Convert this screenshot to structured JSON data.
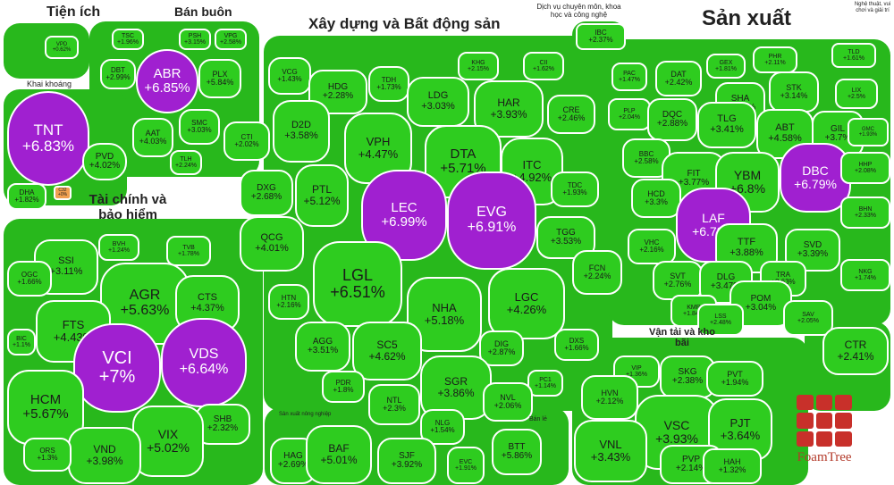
{
  "colors": {
    "green": "#2ecc1f",
    "dark_green": "#28b81c",
    "purple": "#a020d0",
    "red": "#d02020",
    "orange": "#f0a050",
    "gray": "#c8c8c8"
  },
  "sectors": [
    {
      "id": "tien-ich",
      "label": "Tiện ích"
    },
    {
      "id": "ban-buon",
      "label": "Bán buôn"
    },
    {
      "id": "xay-dung",
      "label": "Xây dựng và Bất động sản"
    },
    {
      "id": "dich-vu",
      "label": "Dịch vụ chuyên môn, khoa học và công nghệ"
    },
    {
      "id": "san-xuat",
      "label": "Sản xuất"
    },
    {
      "id": "khai-khoang",
      "label": "Khai khoáng"
    },
    {
      "id": "tai-chinh",
      "label": "Tài chính và bảo hiểm"
    },
    {
      "id": "van-tai",
      "label": "Vận tải và kho bãi"
    },
    {
      "id": "nghe-thuat",
      "label": "Nghệ thuật, vui chơi và giải trí"
    },
    {
      "id": "san-xuat-nong-nghiep",
      "label": "Sản xuất nông nghiệp"
    },
    {
      "id": "ban-le",
      "label": "Bán lẻ"
    }
  ],
  "stocks": [
    {
      "code": "TNT",
      "change": "+6.83%",
      "color": "purple"
    },
    {
      "code": "PVD",
      "change": "+4.02%",
      "color": "green"
    },
    {
      "code": "DHA",
      "change": "+1.82%",
      "color": "green"
    },
    {
      "code": "C32",
      "change": "+0%",
      "color": "orange"
    },
    {
      "code": "ABR",
      "change": "+6.85%",
      "color": "purple"
    },
    {
      "code": "TSC",
      "change": "+1.96%",
      "color": "green"
    },
    {
      "code": "PSH",
      "change": "+3.15%",
      "color": "green"
    },
    {
      "code": "VPG",
      "change": "+2.58%",
      "color": "green"
    },
    {
      "code": "DBT",
      "change": "+2.99%",
      "color": "green"
    },
    {
      "code": "PLX",
      "change": "+5.84%",
      "color": "green"
    },
    {
      "code": "AAT",
      "change": "+4.03%",
      "color": "green"
    },
    {
      "code": "SMC",
      "change": "+3.03%",
      "color": "green"
    },
    {
      "code": "TLH",
      "change": "+2.24%",
      "color": "green"
    },
    {
      "code": "VPD",
      "change": "+0.62%",
      "color": "green"
    },
    {
      "code": "VCG",
      "change": "+1.43%",
      "color": "green"
    },
    {
      "code": "HDG",
      "change": "+2.28%",
      "color": "green"
    },
    {
      "code": "TDH",
      "change": "+1.73%",
      "color": "green"
    },
    {
      "code": "LDG",
      "change": "+3.03%",
      "color": "green"
    },
    {
      "code": "KHG",
      "change": "+2.15%",
      "color": "green"
    },
    {
      "code": "CII",
      "change": "+1.62%",
      "color": "green"
    },
    {
      "code": "HAR",
      "change": "+3.93%",
      "color": "green"
    },
    {
      "code": "CRE",
      "change": "+2.46%",
      "color": "green"
    },
    {
      "code": "D2D",
      "change": "+3.58%",
      "color": "green"
    },
    {
      "code": "VPH",
      "change": "+4.47%",
      "color": "green"
    },
    {
      "code": "DTA",
      "change": "+5.71%",
      "color": "green"
    },
    {
      "code": "ITC",
      "change": "+4.92%",
      "color": "green"
    },
    {
      "code": "CTI",
      "change": "+2.02%",
      "color": "green"
    },
    {
      "code": "DXG",
      "change": "+2.68%",
      "color": "green"
    },
    {
      "code": "PTL",
      "change": "+5.12%",
      "color": "green"
    },
    {
      "code": "LEC",
      "change": "+6.99%",
      "color": "purple"
    },
    {
      "code": "EVG",
      "change": "+6.91%",
      "color": "purple"
    },
    {
      "code": "TDC",
      "change": "+1.93%",
      "color": "green"
    },
    {
      "code": "TGG",
      "change": "+3.53%",
      "color": "green"
    },
    {
      "code": "QCG",
      "change": "+4.01%",
      "color": "green"
    },
    {
      "code": "LGL",
      "change": "+6.51%",
      "color": "green"
    },
    {
      "code": "NHA",
      "change": "+5.18%",
      "color": "green"
    },
    {
      "code": "LGC",
      "change": "+4.26%",
      "color": "green"
    },
    {
      "code": "FCN",
      "change": "+2.24%",
      "color": "green"
    },
    {
      "code": "HTN",
      "change": "+2.16%",
      "color": "green"
    },
    {
      "code": "AGG",
      "change": "+3.51%",
      "color": "green"
    },
    {
      "code": "SC5",
      "change": "+4.62%",
      "color": "green"
    },
    {
      "code": "DIG",
      "change": "+2.87%",
      "color": "green"
    },
    {
      "code": "DXS",
      "change": "+1.66%",
      "color": "green"
    },
    {
      "code": "PDR",
      "change": "+1.8%",
      "color": "green"
    },
    {
      "code": "SGR",
      "change": "+3.86%",
      "color": "green"
    },
    {
      "code": "PC1",
      "change": "+1.14%",
      "color": "green"
    },
    {
      "code": "NTL",
      "change": "+2.3%",
      "color": "green"
    },
    {
      "code": "NVL",
      "change": "+2.06%",
      "color": "green"
    },
    {
      "code": "NLG",
      "change": "+1.54%",
      "color": "green"
    },
    {
      "code": "IBC",
      "change": "+2.37%",
      "color": "green"
    },
    {
      "code": "PAC",
      "change": "+1.47%",
      "color": "green"
    },
    {
      "code": "DAT",
      "change": "+2.42%",
      "color": "green"
    },
    {
      "code": "GEX",
      "change": "+1.81%",
      "color": "green"
    },
    {
      "code": "PHR",
      "change": "+2.11%",
      "color": "green"
    },
    {
      "code": "TLD",
      "change": "+1.61%",
      "color": "green"
    },
    {
      "code": "SHA",
      "change": "+2.75%",
      "color": "green"
    },
    {
      "code": "STK",
      "change": "+3.14%",
      "color": "green"
    },
    {
      "code": "LIX",
      "change": "+2.5%",
      "color": "green"
    },
    {
      "code": "PLP",
      "change": "+2.04%",
      "color": "green"
    },
    {
      "code": "DQC",
      "change": "+2.88%",
      "color": "green"
    },
    {
      "code": "TLG",
      "change": "+3.41%",
      "color": "green"
    },
    {
      "code": "ABT",
      "change": "+4.58%",
      "color": "green"
    },
    {
      "code": "GIL",
      "change": "+3.7%",
      "color": "green"
    },
    {
      "code": "GMC",
      "change": "+1.93%",
      "color": "green"
    },
    {
      "code": "BBC",
      "change": "+2.58%",
      "color": "green"
    },
    {
      "code": "FIT",
      "change": "+3.77%",
      "color": "green"
    },
    {
      "code": "YBM",
      "change": "+6.8%",
      "color": "green"
    },
    {
      "code": "DBC",
      "change": "+6.79%",
      "color": "purple"
    },
    {
      "code": "HHP",
      "change": "+2.08%",
      "color": "green"
    },
    {
      "code": "HCD",
      "change": "+3.3%",
      "color": "green"
    },
    {
      "code": "LAF",
      "change": "+6.79%",
      "color": "purple"
    },
    {
      "code": "BHN",
      "change": "+2.33%",
      "color": "green"
    },
    {
      "code": "VHC",
      "change": "+2.16%",
      "color": "green"
    },
    {
      "code": "TTF",
      "change": "+3.88%",
      "color": "green"
    },
    {
      "code": "SVD",
      "change": "+3.39%",
      "color": "green"
    },
    {
      "code": "SVT",
      "change": "+2.76%",
      "color": "green"
    },
    {
      "code": "DLG",
      "change": "+3.47%",
      "color": "green"
    },
    {
      "code": "TRA",
      "change": "+2.63%",
      "color": "green"
    },
    {
      "code": "NKG",
      "change": "+1.74%",
      "color": "green"
    },
    {
      "code": "KMR",
      "change": "+1.84%",
      "color": "green"
    },
    {
      "code": "POM",
      "change": "+3.04%",
      "color": "green"
    },
    {
      "code": "LSS",
      "change": "+2.48%",
      "color": "green"
    },
    {
      "code": "SAV",
      "change": "+2.05%",
      "color": "green"
    },
    {
      "code": "CTR",
      "change": "+2.41%",
      "color": "green"
    },
    {
      "code": "SSI",
      "change": "+3.11%",
      "color": "green"
    },
    {
      "code": "BVH",
      "change": "+1.24%",
      "color": "green"
    },
    {
      "code": "TVB",
      "change": "+1.78%",
      "color": "green"
    },
    {
      "code": "OGC",
      "change": "+1.66%",
      "color": "green"
    },
    {
      "code": "AGR",
      "change": "+5.63%",
      "color": "green"
    },
    {
      "code": "CTS",
      "change": "+4.37%",
      "color": "green"
    },
    {
      "code": "FTS",
      "change": "+4.43%",
      "color": "green"
    },
    {
      "code": "BIC",
      "change": "+1.1%",
      "color": "green"
    },
    {
      "code": "VCI",
      "change": "+7%",
      "color": "purple"
    },
    {
      "code": "VDS",
      "change": "+6.64%",
      "color": "purple"
    },
    {
      "code": "HCM",
      "change": "+5.67%",
      "color": "green"
    },
    {
      "code": "SHB",
      "change": "+2.32%",
      "color": "green"
    },
    {
      "code": "VIX",
      "change": "+5.02%",
      "color": "green"
    },
    {
      "code": "VND",
      "change": "+3.98%",
      "color": "green"
    },
    {
      "code": "ORS",
      "change": "+1.3%",
      "color": "green"
    },
    {
      "code": "VIP",
      "change": "+1.36%",
      "color": "green"
    },
    {
      "code": "SKG",
      "change": "+2.38%",
      "color": "green"
    },
    {
      "code": "PVT",
      "change": "+1.94%",
      "color": "green"
    },
    {
      "code": "HVN",
      "change": "+2.12%",
      "color": "green"
    },
    {
      "code": "VSC",
      "change": "+3.93%",
      "color": "green"
    },
    {
      "code": "PJT",
      "change": "+3.64%",
      "color": "green"
    },
    {
      "code": "VNL",
      "change": "+3.43%",
      "color": "green"
    },
    {
      "code": "PVP",
      "change": "+2.14%",
      "color": "green"
    },
    {
      "code": "HAH",
      "change": "+1.32%",
      "color": "green"
    },
    {
      "code": "HAG",
      "change": "+2.69%",
      "color": "green"
    },
    {
      "code": "BAF",
      "change": "+5.01%",
      "color": "green"
    },
    {
      "code": "SJF",
      "change": "+3.92%",
      "color": "green"
    },
    {
      "code": "BTT",
      "change": "+5.86%",
      "color": "green"
    },
    {
      "code": "EVC",
      "change": "+1.91%",
      "color": "green"
    }
  ],
  "logo": {
    "text": "FoamTree"
  }
}
